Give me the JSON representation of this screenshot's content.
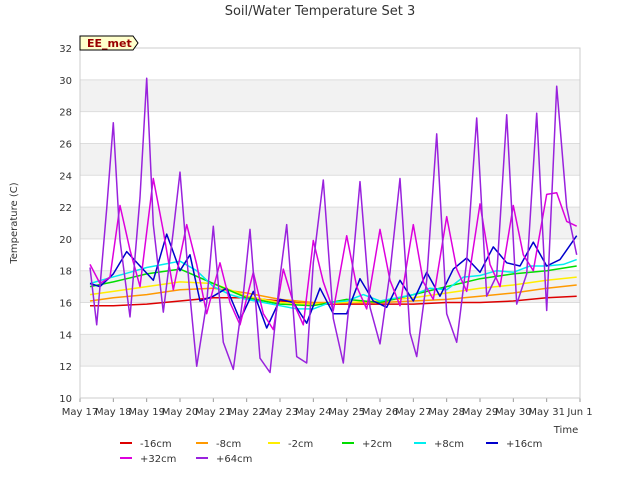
{
  "chart_data": {
    "type": "line",
    "title": "Soil/Water Temperature Set 3",
    "xlabel": "Time",
    "ylabel": "Temperature (C)",
    "site_label": "EE_met",
    "ylim": [
      10,
      32
    ],
    "yticks": [
      "10",
      "12",
      "14",
      "16",
      "18",
      "20",
      "22",
      "24",
      "26",
      "28",
      "30",
      "32"
    ],
    "xlim": [
      17,
      32
    ],
    "xticks": [
      "May 17",
      "May 18",
      "May 19",
      "May 20",
      "May 21",
      "May 22",
      "May 23",
      "May 24",
      "May 25",
      "May 26",
      "May 27",
      "May 28",
      "May 29",
      "May 30",
      "May 31",
      "Jun 1"
    ],
    "grid": "alternating horizontal bands",
    "legend_placement": "bottom",
    "colors": {
      "-16cm": "#dd0000",
      "-8cm": "#ff9900",
      "-2cm": "#ffee00",
      "+2cm": "#00dd00",
      "+8cm": "#00eeee",
      "+16cm": "#0000cc",
      "+32cm": "#dd00dd",
      "+64cm": "#9922dd"
    },
    "series": [
      {
        "name": "-16cm",
        "x": [
          17.3,
          18,
          19,
          20,
          21,
          22,
          23,
          24,
          25,
          26,
          27,
          28,
          29,
          30,
          31,
          31.9
        ],
        "y": [
          15.8,
          15.8,
          15.9,
          16.1,
          16.3,
          16.3,
          16.1,
          15.9,
          15.9,
          15.9,
          15.9,
          16.0,
          16.0,
          16.1,
          16.3,
          16.4
        ]
      },
      {
        "name": "-8cm",
        "x": [
          17.3,
          18,
          19,
          20,
          21,
          22,
          23,
          24,
          25,
          26,
          27,
          28,
          29,
          30,
          31,
          31.9
        ],
        "y": [
          16.1,
          16.3,
          16.5,
          16.8,
          16.9,
          16.6,
          16.2,
          16.0,
          16.0,
          16.0,
          16.1,
          16.2,
          16.4,
          16.6,
          16.9,
          17.1
        ]
      },
      {
        "name": "-2cm",
        "x": [
          17.3,
          18,
          19,
          20,
          21,
          22,
          23,
          24,
          25,
          26,
          27,
          28,
          29,
          30,
          31,
          31.9
        ],
        "y": [
          16.5,
          16.7,
          17.0,
          17.3,
          17.2,
          16.4,
          16.0,
          15.9,
          16.0,
          16.1,
          16.3,
          16.6,
          16.9,
          17.1,
          17.4,
          17.6
        ]
      },
      {
        "name": "+2cm",
        "x": [
          17.3,
          18,
          19,
          20,
          21,
          22,
          23,
          24,
          25,
          26,
          27,
          28,
          29,
          30,
          31,
          31.9
        ],
        "y": [
          17.0,
          17.3,
          17.8,
          18.1,
          17.2,
          16.3,
          15.9,
          15.8,
          16.2,
          16.0,
          16.5,
          17.0,
          17.5,
          17.8,
          18.0,
          18.3
        ]
      },
      {
        "name": "+8cm",
        "x": [
          17.3,
          17.8,
          18.5,
          19.0,
          19.5,
          20.0,
          20.5,
          21.0,
          21.5,
          22.0,
          22.5,
          23.0,
          23.5,
          24.0,
          24.5,
          25.0,
          25.5,
          26.0,
          26.5,
          27.0,
          27.5,
          28.0,
          28.5,
          29.0,
          29.5,
          30.0,
          30.5,
          31.0,
          31.5,
          31.9
        ],
        "y": [
          17.2,
          17.5,
          17.9,
          18.2,
          18.4,
          18.6,
          18.0,
          17.0,
          16.5,
          16.2,
          16.0,
          15.8,
          15.6,
          15.6,
          16.0,
          16.1,
          16.5,
          16.1,
          16.3,
          16.5,
          16.9,
          16.8,
          17.6,
          17.7,
          18.0,
          17.9,
          18.3,
          18.3,
          18.4,
          18.7
        ]
      },
      {
        "name": "+16cm",
        "x": [
          17.3,
          17.6,
          18.0,
          18.4,
          18.8,
          19.2,
          19.6,
          20.0,
          20.3,
          20.6,
          21.0,
          21.4,
          21.8,
          22.2,
          22.6,
          23.0,
          23.4,
          23.8,
          24.2,
          24.6,
          25.0,
          25.4,
          25.8,
          26.2,
          26.6,
          27.0,
          27.4,
          27.8,
          28.2,
          28.6,
          29.0,
          29.4,
          29.8,
          30.2,
          30.6,
          31.0,
          31.4,
          31.9
        ],
        "y": [
          17.2,
          17.0,
          17.8,
          19.2,
          18.3,
          17.4,
          20.3,
          18.0,
          19.0,
          16.1,
          16.4,
          16.9,
          14.9,
          16.7,
          14.4,
          16.2,
          16.0,
          14.7,
          16.9,
          15.3,
          15.3,
          17.5,
          16.1,
          15.7,
          17.4,
          16.1,
          17.9,
          16.4,
          18.1,
          18.8,
          17.9,
          19.5,
          18.5,
          18.3,
          19.8,
          18.3,
          18.7,
          20.2
        ]
      },
      {
        "name": "+32cm",
        "x": [
          17.3,
          17.6,
          17.9,
          18.2,
          18.5,
          18.8,
          19.2,
          19.5,
          19.8,
          20.2,
          20.5,
          20.8,
          21.2,
          21.5,
          21.8,
          22.2,
          22.5,
          22.8,
          23.1,
          23.4,
          23.7,
          24.0,
          24.3,
          24.6,
          25.0,
          25.3,
          25.6,
          26.0,
          26.3,
          26.6,
          27.0,
          27.3,
          27.6,
          28.0,
          28.3,
          28.6,
          29.0,
          29.3,
          29.6,
          30.0,
          30.3,
          30.6,
          31.0,
          31.3,
          31.6,
          31.9
        ],
        "y": [
          18.4,
          17.2,
          17.6,
          22.1,
          19.3,
          17.0,
          23.8,
          20.5,
          16.8,
          20.9,
          18.4,
          15.3,
          18.5,
          16.0,
          14.6,
          17.9,
          15.3,
          14.3,
          18.1,
          16.0,
          14.6,
          19.9,
          17.3,
          15.5,
          20.2,
          17.0,
          15.6,
          20.6,
          17.4,
          15.8,
          20.9,
          17.3,
          16.2,
          21.4,
          18.1,
          16.7,
          22.2,
          18.4,
          17.0,
          22.1,
          19.0,
          18.0,
          22.8,
          22.9,
          21.1,
          20.8
        ]
      },
      {
        "name": "+64cm",
        "x": [
          17.3,
          17.5,
          17.8,
          18.0,
          18.2,
          18.5,
          18.8,
          19.0,
          19.2,
          19.5,
          19.8,
          20.0,
          20.3,
          20.5,
          20.8,
          21.0,
          21.3,
          21.6,
          21.9,
          22.1,
          22.4,
          22.7,
          23.0,
          23.2,
          23.5,
          23.8,
          24.0,
          24.3,
          24.6,
          24.9,
          25.1,
          25.4,
          25.7,
          26.0,
          26.3,
          26.6,
          26.9,
          27.1,
          27.4,
          27.7,
          28.0,
          28.3,
          28.6,
          28.9,
          29.2,
          29.5,
          29.8,
          30.1,
          30.4,
          30.7,
          31.0,
          31.3,
          31.6,
          31.9
        ],
        "y": [
          18.2,
          14.6,
          21.9,
          27.3,
          19.9,
          15.1,
          22.6,
          30.1,
          20.9,
          15.4,
          20.5,
          24.2,
          16.4,
          12.0,
          16.0,
          20.8,
          13.5,
          11.8,
          16.5,
          20.6,
          12.5,
          11.6,
          17.6,
          20.9,
          12.6,
          12.2,
          18.5,
          23.7,
          15.0,
          12.2,
          16.5,
          23.6,
          15.7,
          13.4,
          17.9,
          23.8,
          14.1,
          12.6,
          17.4,
          26.6,
          15.3,
          13.5,
          18.6,
          27.6,
          16.4,
          17.7,
          27.8,
          15.9,
          17.8,
          27.9,
          15.5,
          29.6,
          22.0,
          19.0
        ]
      }
    ]
  }
}
